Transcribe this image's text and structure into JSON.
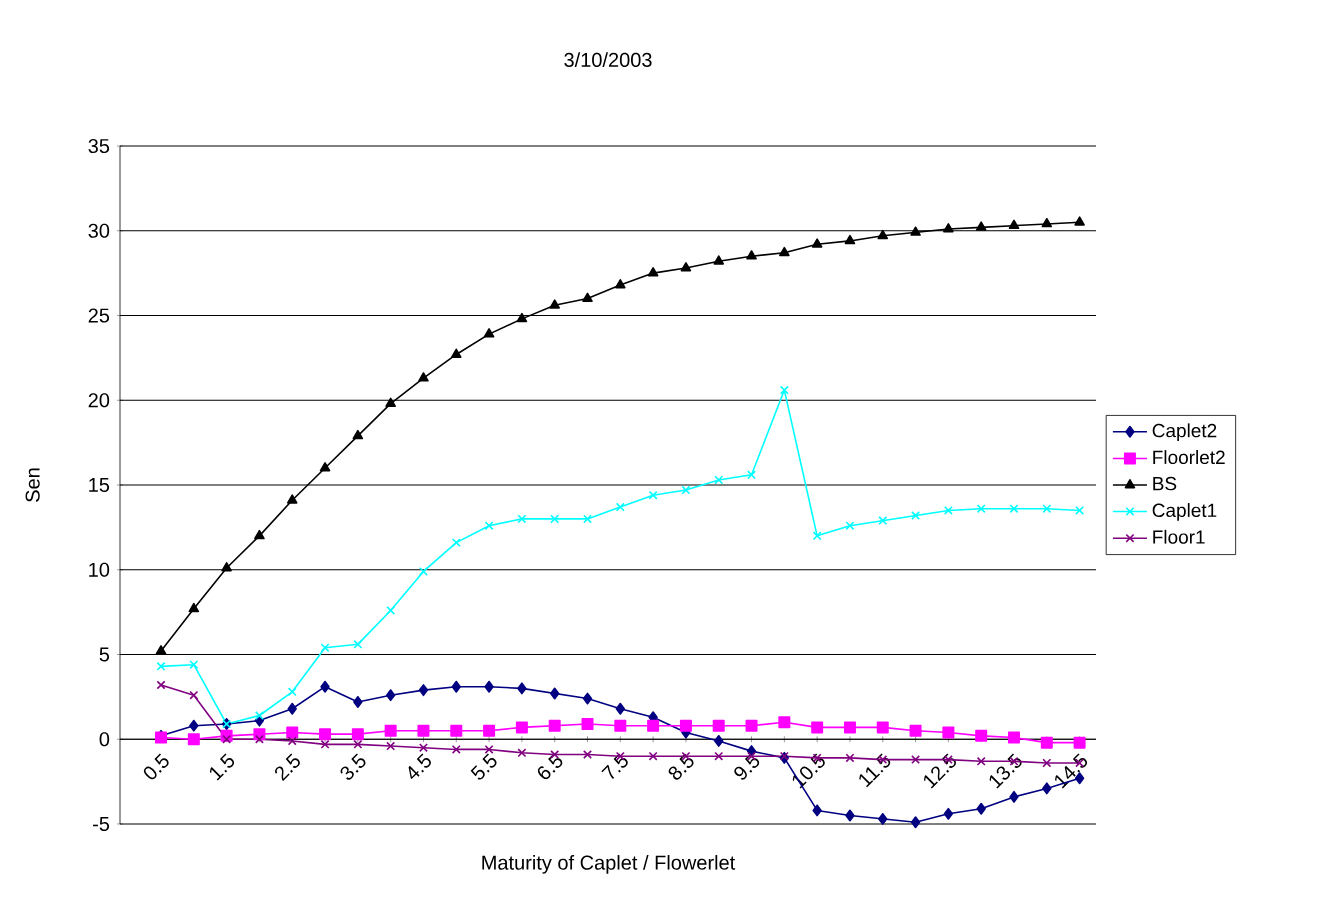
{
  "chart_data": {
    "type": "line",
    "title": "3/10/2003",
    "xlabel": "Maturity of Caplet / Flowerlet",
    "ylabel": "Sen",
    "categories": [
      "0.5",
      null,
      "1.5",
      null,
      "2.5",
      null,
      "3.5",
      null,
      "4.5",
      null,
      "5.5",
      null,
      "6.5",
      null,
      "7.5",
      null,
      "8.5",
      null,
      "9.5",
      null,
      "10.5",
      null,
      "11.5",
      null,
      "12.5",
      null,
      "13.5",
      null,
      "14.5"
    ],
    "series": [
      {
        "name": "Caplet2",
        "color": "#000080",
        "marker": "diamond",
        "values": [
          0.2,
          0.8,
          0.9,
          1.1,
          1.8,
          3.1,
          2.2,
          2.6,
          2.9,
          3.1,
          3.1,
          3.0,
          2.7,
          2.4,
          1.8,
          1.3,
          0.4,
          -0.1,
          -0.7,
          -1.1,
          -4.2,
          -4.5,
          -4.7,
          -4.9,
          -4.4,
          -4.1,
          -3.4,
          -2.9,
          -2.3
        ]
      },
      {
        "name": "Floorlet2",
        "color": "#ff00ff",
        "marker": "square",
        "values": [
          0.1,
          0.0,
          0.2,
          0.3,
          0.4,
          0.3,
          0.3,
          0.5,
          0.5,
          0.5,
          0.5,
          0.7,
          0.8,
          0.9,
          0.8,
          0.8,
          0.8,
          0.8,
          0.8,
          1.0,
          0.7,
          0.7,
          0.7,
          0.5,
          0.4,
          0.2,
          0.1,
          -0.2,
          -0.2
        ]
      },
      {
        "name": "BS",
        "color": "#000000",
        "marker": "triangle",
        "values": [
          5.2,
          7.7,
          10.1,
          12.0,
          14.1,
          16.0,
          17.9,
          19.8,
          21.3,
          22.7,
          23.9,
          24.8,
          25.6,
          26.0,
          26.8,
          27.5,
          27.8,
          28.2,
          28.5,
          28.7,
          29.2,
          29.4,
          29.7,
          29.9,
          30.1,
          30.2,
          30.3,
          30.4,
          30.5
        ]
      },
      {
        "name": "Caplet1",
        "color": "#00ffff",
        "marker": "cross",
        "values": [
          4.3,
          4.4,
          0.9,
          1.4,
          2.8,
          5.4,
          5.6,
          7.6,
          9.9,
          11.6,
          12.6,
          13.0,
          13.0,
          13.0,
          13.7,
          14.4,
          14.7,
          15.3,
          15.6,
          20.6,
          12.0,
          12.6,
          12.9,
          13.2,
          13.5,
          13.6,
          13.6,
          13.6,
          13.5
        ]
      },
      {
        "name": "Floor1",
        "color": "#800080",
        "marker": "cross",
        "values": [
          3.2,
          2.6,
          0.0,
          0.0,
          -0.1,
          -0.3,
          -0.3,
          -0.4,
          -0.5,
          -0.6,
          -0.6,
          -0.8,
          -0.9,
          -0.9,
          -1.0,
          -1.0,
          -1.0,
          -1.0,
          -1.0,
          -1.0,
          -1.1,
          -1.1,
          -1.2,
          -1.2,
          -1.2,
          -1.3,
          -1.3,
          -1.4,
          -1.4
        ]
      }
    ],
    "ylim": [
      -5,
      35
    ],
    "yticks": [
      -5,
      0,
      5,
      10,
      15,
      20,
      25,
      30,
      35
    ],
    "grid": "y",
    "legend": "right",
    "line_style": "solid"
  }
}
